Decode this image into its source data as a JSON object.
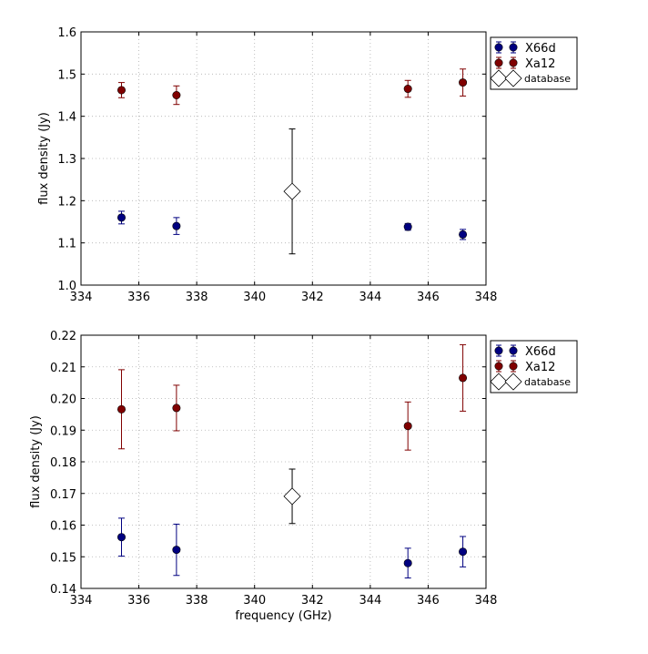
{
  "chart_data": [
    {
      "type": "scatter",
      "panel": "top",
      "xlabel": "",
      "ylabel": "flux density (Jy)",
      "xlim": [
        334,
        348
      ],
      "ylim": [
        1.0,
        1.6
      ],
      "xticks": [
        334,
        336,
        338,
        340,
        342,
        344,
        346,
        348
      ],
      "xtick_labels": [
        "334",
        "336",
        "338",
        "340",
        "342",
        "344",
        "346",
        "348"
      ],
      "yticks": [
        1.0,
        1.1,
        1.2,
        1.3,
        1.4,
        1.5,
        1.6
      ],
      "ytick_labels": [
        "1.0",
        "1.1",
        "1.2",
        "1.3",
        "1.4",
        "1.5",
        "1.6"
      ],
      "grid": true,
      "legend_position": "outside-top-right",
      "series": [
        {
          "name": "X66d",
          "marker": "circle",
          "color": "#000080",
          "points": [
            {
              "x": 335.4,
              "y": 1.16,
              "err": 0.015
            },
            {
              "x": 337.3,
              "y": 1.14,
              "err": 0.02
            },
            {
              "x": 345.3,
              "y": 1.138,
              "err": 0.008
            },
            {
              "x": 347.2,
              "y": 1.12,
              "err": 0.012
            }
          ]
        },
        {
          "name": "Xa12",
          "marker": "circle",
          "color": "#800000",
          "points": [
            {
              "x": 335.4,
              "y": 1.462,
              "err": 0.018
            },
            {
              "x": 337.3,
              "y": 1.45,
              "err": 0.022
            },
            {
              "x": 345.3,
              "y": 1.465,
              "err": 0.02
            },
            {
              "x": 347.2,
              "y": 1.48,
              "err": 0.032
            }
          ]
        },
        {
          "name": "database",
          "marker": "diamond",
          "color": "#ffffff",
          "points": [
            {
              "x": 341.3,
              "y": 1.222,
              "err": 0.148
            }
          ]
        }
      ]
    },
    {
      "type": "scatter",
      "panel": "bottom",
      "xlabel": "frequency (GHz)",
      "ylabel": "flux density (Jy)",
      "xlim": [
        334,
        348
      ],
      "ylim": [
        0.14,
        0.22
      ],
      "xticks": [
        334,
        336,
        338,
        340,
        342,
        344,
        346,
        348
      ],
      "xtick_labels": [
        "334",
        "336",
        "338",
        "340",
        "342",
        "344",
        "346",
        "348"
      ],
      "yticks": [
        0.14,
        0.15,
        0.16,
        0.17,
        0.18,
        0.19,
        0.2,
        0.21,
        0.22
      ],
      "ytick_labels": [
        "0.14",
        "0.15",
        "0.16",
        "0.17",
        "0.18",
        "0.19",
        "0.20",
        "0.21",
        "0.22"
      ],
      "grid": true,
      "legend_position": "outside-top-right",
      "series": [
        {
          "name": "X66d",
          "marker": "circle",
          "color": "#000080",
          "points": [
            {
              "x": 335.4,
              "y": 0.1562,
              "err": 0.006
            },
            {
              "x": 337.3,
              "y": 0.1522,
              "err": 0.0081
            },
            {
              "x": 345.3,
              "y": 0.148,
              "err": 0.0047
            },
            {
              "x": 347.2,
              "y": 0.1516,
              "err": 0.0048
            }
          ]
        },
        {
          "name": "Xa12",
          "marker": "circle",
          "color": "#800000",
          "points": [
            {
              "x": 335.4,
              "y": 0.1966,
              "err": 0.0125
            },
            {
              "x": 337.3,
              "y": 0.197,
              "err": 0.0072
            },
            {
              "x": 345.3,
              "y": 0.1913,
              "err": 0.0076
            },
            {
              "x": 347.2,
              "y": 0.2065,
              "err": 0.0105
            }
          ]
        },
        {
          "name": "database",
          "marker": "diamond",
          "color": "#ffffff",
          "points": [
            {
              "x": 341.3,
              "y": 0.1691,
              "err": 0.0086
            }
          ]
        }
      ]
    }
  ]
}
